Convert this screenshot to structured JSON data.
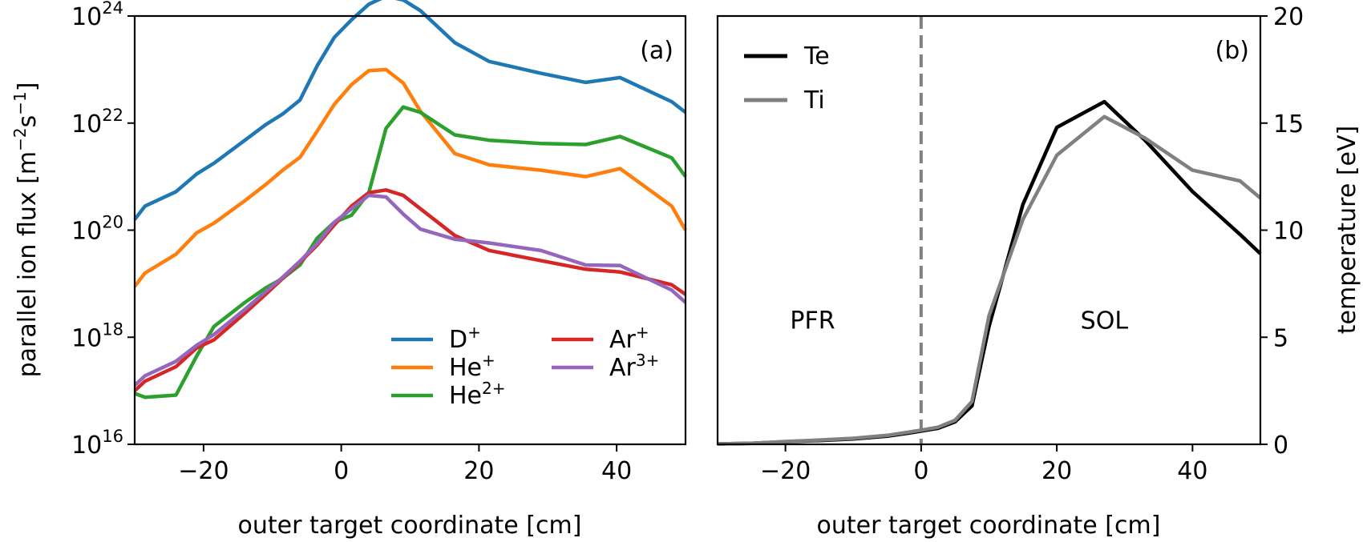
{
  "colors": {
    "D_plus": "#1f77b4",
    "He_plus": "#ff7f0e",
    "He_2plus": "#2ca02c",
    "Ar_plus": "#d62728",
    "Ar_3plus": "#9467bd",
    "Te": "#000000",
    "Ti": "#808080",
    "separatrix": "#808080"
  },
  "chart_data": [
    {
      "id": "a",
      "type": "line",
      "panel_label": "(a)",
      "xlabel": "outer target coordinate [cm]",
      "ylabel_parts": [
        "parallel ion flux [m",
        "−2",
        "s",
        "−1",
        "]"
      ],
      "yscale": "log",
      "xlim": [
        -30,
        50
      ],
      "ylim_exp": [
        16,
        24
      ],
      "xticks": [
        -20,
        0,
        20,
        40
      ],
      "xtick_labels": [
        "−20",
        "0",
        "20",
        "40"
      ],
      "yticks_exp": [
        16,
        18,
        20,
        22,
        24
      ],
      "ytick_base": "10",
      "ytick_exp_labels": [
        "16",
        "18",
        "20",
        "22",
        "24"
      ],
      "legend": {
        "placement": "lower-right",
        "columns": 2,
        "entries": [
          {
            "key": "D_plus",
            "base": "D",
            "sup": "+"
          },
          {
            "key": "He_plus",
            "base": "He",
            "sup": "+"
          },
          {
            "key": "He_2plus",
            "base": "He",
            "sup": "2+"
          },
          {
            "key": "Ar_plus",
            "base": "Ar",
            "sup": "+"
          },
          {
            "key": "Ar_3plus",
            "base": "Ar",
            "sup": "3+"
          }
        ]
      },
      "series": [
        {
          "name": "D+",
          "key": "D_plus",
          "x": [
            -30,
            -28.5,
            -24,
            -21,
            -18.5,
            -14,
            -11,
            -8.5,
            -6,
            -3.5,
            -1,
            1.5,
            4,
            6.5,
            9,
            11.5,
            16.5,
            21.5,
            29,
            35.5,
            40.5,
            48,
            50
          ],
          "logy": [
            20.2,
            20.45,
            20.72,
            21.05,
            21.25,
            21.68,
            21.97,
            22.17,
            22.43,
            23.07,
            23.6,
            23.93,
            24.22,
            24.37,
            24.3,
            24.1,
            23.5,
            23.15,
            22.93,
            22.76,
            22.85,
            22.4,
            22.2
          ]
        },
        {
          "name": "He+",
          "key": "He_plus",
          "x": [
            -30,
            -28.5,
            -24,
            -21,
            -18.5,
            -14,
            -11,
            -8.5,
            -6,
            -3.5,
            -1,
            1.5,
            4,
            6.5,
            9,
            11.5,
            16.5,
            21.5,
            29,
            35.5,
            40.5,
            48,
            50
          ],
          "logy": [
            18.95,
            19.2,
            19.55,
            19.95,
            20.13,
            20.55,
            20.85,
            21.12,
            21.36,
            21.85,
            22.35,
            22.72,
            22.98,
            23.0,
            22.75,
            22.22,
            21.43,
            21.22,
            21.12,
            21.0,
            21.15,
            20.45,
            20.0
          ]
        },
        {
          "name": "He2+",
          "key": "He_2plus",
          "x": [
            -30,
            -28.5,
            -24,
            -21,
            -18.5,
            -14,
            -11,
            -8.5,
            -6,
            -3.5,
            -1,
            1.5,
            4,
            6.5,
            9,
            11.5,
            16.5,
            21.5,
            29,
            35.5,
            40.5,
            48,
            50
          ],
          "logy": [
            16.95,
            16.88,
            16.92,
            17.65,
            18.2,
            18.65,
            18.92,
            19.1,
            19.35,
            19.85,
            20.15,
            20.28,
            20.7,
            21.9,
            22.3,
            22.2,
            21.78,
            21.68,
            21.62,
            21.6,
            21.75,
            21.35,
            21.0
          ]
        },
        {
          "name": "Ar+",
          "key": "Ar_plus",
          "x": [
            -30,
            -28.5,
            -24,
            -21,
            -18.5,
            -14,
            -11,
            -8.5,
            -6,
            -3.5,
            -1,
            1.5,
            4,
            6.5,
            9,
            11.5,
            16.5,
            21.5,
            29,
            35.5,
            40.5,
            48,
            50
          ],
          "logy": [
            17.0,
            17.18,
            17.45,
            17.8,
            17.95,
            18.45,
            18.8,
            19.1,
            19.4,
            19.72,
            20.1,
            20.45,
            20.7,
            20.75,
            20.65,
            20.4,
            19.9,
            19.62,
            19.43,
            19.27,
            19.22,
            18.98,
            18.8
          ]
        },
        {
          "name": "Ar3+",
          "key": "Ar_3plus",
          "x": [
            -30,
            -28.5,
            -24,
            -21,
            -18.5,
            -14,
            -11,
            -8.5,
            -6,
            -3.5,
            -1,
            1.5,
            4,
            6.5,
            9,
            11.5,
            16.5,
            21.5,
            29,
            35.5,
            40.5,
            48,
            50
          ],
          "logy": [
            17.1,
            17.28,
            17.55,
            17.85,
            18.05,
            18.52,
            18.85,
            19.12,
            19.42,
            19.75,
            20.15,
            20.4,
            20.65,
            20.62,
            20.3,
            20.02,
            19.83,
            19.76,
            19.62,
            19.35,
            19.34,
            18.88,
            18.65
          ]
        }
      ]
    },
    {
      "id": "b",
      "type": "line",
      "panel_label": "(b)",
      "xlabel": "outer target coordinate [cm]",
      "ylabel": "temperature [eV]",
      "xlim": [
        -30,
        50
      ],
      "ylim": [
        0,
        20
      ],
      "xticks": [
        -20,
        0,
        20,
        40
      ],
      "xtick_labels": [
        "−20",
        "0",
        "20",
        "40"
      ],
      "yticks": [
        0,
        5,
        10,
        15,
        20
      ],
      "ytick_labels": [
        "0",
        "5",
        "10",
        "15",
        "20"
      ],
      "separatrix_x": 0,
      "region_labels": [
        {
          "text": "PFR",
          "x": -16,
          "y": 5.4
        },
        {
          "text": "SOL",
          "x": 27,
          "y": 5.4
        }
      ],
      "legend": {
        "placement": "top-left",
        "entries": [
          {
            "key": "Te",
            "label": "Te"
          },
          {
            "key": "Ti",
            "label": "Ti"
          }
        ]
      },
      "series": [
        {
          "name": "Te",
          "key": "Te",
          "x": [
            -30,
            -25,
            -20,
            -15,
            -10,
            -5,
            -2,
            0,
            2.5,
            5,
            7.5,
            10,
            15,
            20,
            27,
            33,
            40,
            47,
            50
          ],
          "y": [
            0.02,
            0.05,
            0.12,
            0.18,
            0.25,
            0.38,
            0.52,
            0.62,
            0.75,
            1.05,
            1.8,
            5.5,
            11.2,
            14.8,
            16.0,
            14.2,
            11.8,
            9.8,
            8.9
          ]
        },
        {
          "name": "Ti",
          "key": "Ti",
          "x": [
            -30,
            -25,
            -20,
            -15,
            -10,
            -5,
            -2,
            0,
            2.5,
            5,
            7.5,
            10,
            15,
            20,
            27,
            33,
            40,
            47,
            50
          ],
          "y": [
            0.02,
            0.05,
            0.13,
            0.2,
            0.28,
            0.42,
            0.56,
            0.66,
            0.8,
            1.12,
            2.0,
            6.0,
            10.5,
            13.5,
            15.3,
            14.3,
            12.8,
            12.3,
            11.5
          ]
        }
      ]
    }
  ]
}
